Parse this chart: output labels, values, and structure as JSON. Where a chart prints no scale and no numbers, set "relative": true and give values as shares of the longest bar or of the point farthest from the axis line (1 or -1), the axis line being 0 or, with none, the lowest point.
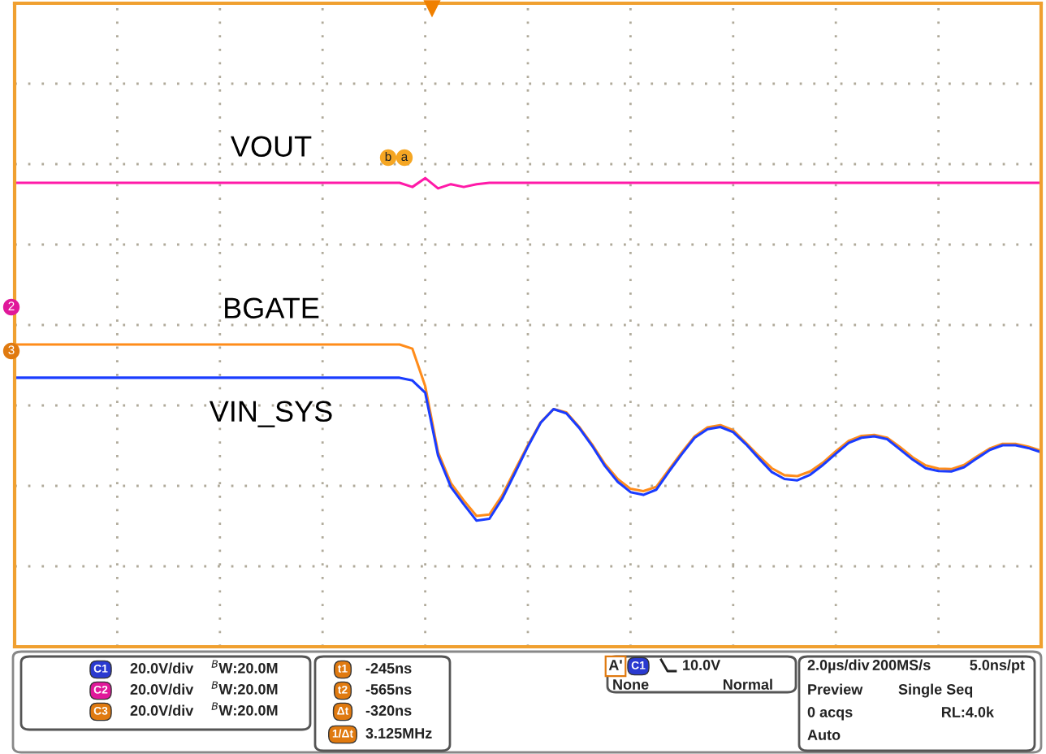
{
  "chart_data": {
    "type": "line",
    "relative": true,
    "grid": true,
    "categories": [
      null,
      null,
      null,
      null,
      null,
      null,
      null,
      null,
      null,
      null,
      null,
      null,
      null,
      null,
      null,
      null,
      null,
      null,
      null,
      null,
      null,
      null,
      null,
      null,
      null,
      null,
      null,
      null,
      null,
      null,
      null,
      null,
      null,
      null,
      null,
      null,
      null,
      null,
      null,
      null,
      null,
      null,
      null,
      null,
      null,
      null,
      null,
      null,
      null,
      null,
      null,
      null,
      null,
      null,
      null,
      null,
      null,
      null,
      null,
      null,
      null,
      null,
      null,
      null,
      null,
      null,
      null,
      null,
      null,
      null,
      null,
      null,
      null,
      null,
      null,
      null,
      null,
      null,
      null,
      null,
      null
    ],
    "series": [
      {
        "name": "VOUT",
        "color": "#ff1aa8",
        "values": [
          0.99,
          0.99,
          0.99,
          0.99,
          0.99,
          0.99,
          0.99,
          0.99,
          0.99,
          0.99,
          0.99,
          0.99,
          0.99,
          0.99,
          0.99,
          0.99,
          0.99,
          0.99,
          0.99,
          0.99,
          0.99,
          0.99,
          0.99,
          0.99,
          0.99,
          0.99,
          0.99,
          0.99,
          0.99,
          0.99,
          0.99,
          0.981,
          1.0,
          0.978,
          0.987,
          0.981,
          0.987,
          0.99,
          0.99,
          0.99,
          0.99,
          0.99,
          0.99,
          0.99,
          0.99,
          0.99,
          0.99,
          0.99,
          0.99,
          0.99,
          0.99,
          0.99,
          0.99,
          0.99,
          0.99,
          0.99,
          0.99,
          0.99,
          0.99,
          0.99,
          0.99,
          0.99,
          0.99,
          0.99,
          0.99,
          0.99,
          0.99,
          0.99,
          0.99,
          0.99,
          0.99,
          0.99,
          0.99,
          0.99,
          0.99,
          0.99,
          0.99,
          0.99,
          0.99,
          0.99,
          0.99
        ]
      },
      {
        "name": "BGATE",
        "color": "#ff8c1a",
        "values": [
          0.645,
          0.645,
          0.645,
          0.645,
          0.645,
          0.645,
          0.645,
          0.645,
          0.645,
          0.645,
          0.645,
          0.645,
          0.645,
          0.645,
          0.645,
          0.645,
          0.645,
          0.645,
          0.645,
          0.645,
          0.645,
          0.645,
          0.645,
          0.645,
          0.645,
          0.645,
          0.645,
          0.645,
          0.645,
          0.645,
          0.645,
          0.636,
          0.556,
          0.415,
          0.349,
          0.312,
          0.279,
          0.282,
          0.323,
          0.377,
          0.43,
          0.479,
          0.507,
          0.5,
          0.469,
          0.432,
          0.39,
          0.358,
          0.337,
          0.332,
          0.341,
          0.378,
          0.415,
          0.449,
          0.468,
          0.473,
          0.462,
          0.435,
          0.407,
          0.381,
          0.366,
          0.364,
          0.374,
          0.393,
          0.417,
          0.439,
          0.45,
          0.452,
          0.446,
          0.426,
          0.404,
          0.387,
          0.38,
          0.379,
          0.388,
          0.406,
          0.423,
          0.433,
          0.433,
          0.427,
          0.418
        ]
      },
      {
        "name": "VIN_SYS",
        "color": "#1a3cff",
        "values": [
          0.574,
          0.574,
          0.574,
          0.574,
          0.574,
          0.574,
          0.574,
          0.574,
          0.574,
          0.574,
          0.574,
          0.574,
          0.574,
          0.574,
          0.574,
          0.574,
          0.574,
          0.574,
          0.574,
          0.574,
          0.574,
          0.574,
          0.574,
          0.574,
          0.574,
          0.574,
          0.574,
          0.574,
          0.574,
          0.574,
          0.574,
          0.568,
          0.542,
          0.408,
          0.341,
          0.304,
          0.269,
          0.273,
          0.316,
          0.371,
          0.427,
          0.478,
          0.507,
          0.498,
          0.467,
          0.429,
          0.386,
          0.352,
          0.33,
          0.324,
          0.335,
          0.374,
          0.411,
          0.446,
          0.464,
          0.469,
          0.458,
          0.432,
          0.402,
          0.373,
          0.358,
          0.355,
          0.367,
          0.388,
          0.412,
          0.435,
          0.446,
          0.449,
          0.443,
          0.421,
          0.399,
          0.381,
          0.375,
          0.374,
          0.383,
          0.402,
          0.42,
          0.43,
          0.43,
          0.424,
          0.415
        ]
      }
    ],
    "annotations": [
      "b",
      "a",
      "2",
      "3",
      "C1",
      "20.0V/div",
      "$^{B}$W:20.0M",
      "C2",
      "20.0V/div",
      "$^{B}$W:20.0M",
      "C3",
      "20.0V/div",
      "$^{B}$W:20.0M",
      "t1",
      "-245ns",
      "t2",
      "-565ns",
      "Δt",
      "-320ns",
      "1/Δt",
      "3.125MHz",
      "A'",
      "C1",
      "10.0V",
      "None",
      "Normal",
      "2.0µs/div",
      "200MS/s",
      "5.0ns/pt",
      "Preview",
      "Single Seq",
      "0 acqs",
      "RL:4.0k",
      "Auto"
    ]
  }
}
